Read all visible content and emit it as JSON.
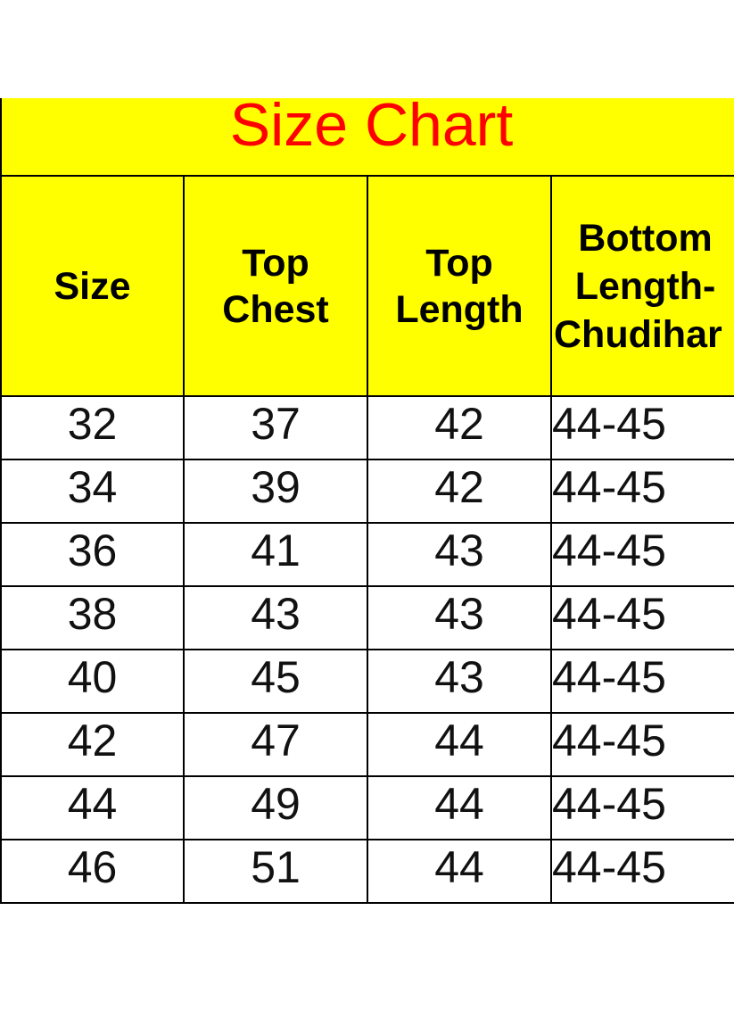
{
  "title": "Size Chart",
  "colors": {
    "header_bg": "#ffff00",
    "title_text": "#ff0000",
    "body_bg": "#ffffff"
  },
  "table": {
    "headers": [
      "Size",
      "Top Chest",
      "Top Length",
      "Bottom Length-Chudihar"
    ],
    "rows": [
      [
        "32",
        "37",
        "42",
        "44-45"
      ],
      [
        "34",
        "39",
        "42",
        "44-45"
      ],
      [
        "36",
        "41",
        "43",
        "44-45"
      ],
      [
        "38",
        "43",
        "43",
        "44-45"
      ],
      [
        "40",
        "45",
        "43",
        "44-45"
      ],
      [
        "42",
        "47",
        "44",
        "44-45"
      ],
      [
        "44",
        "49",
        "44",
        "44-45"
      ],
      [
        "46",
        "51",
        "44",
        "44-45"
      ]
    ]
  }
}
